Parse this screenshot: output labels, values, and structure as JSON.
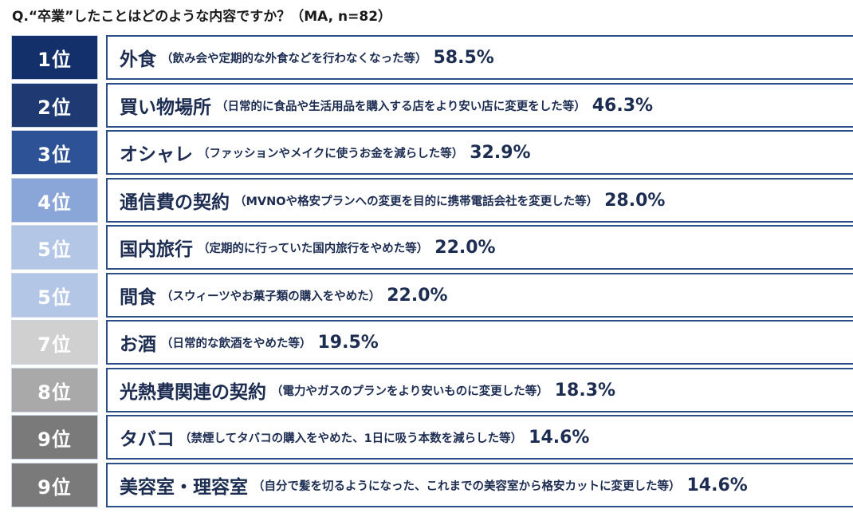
{
  "question": "Q.“卒業”したことはどのような内容ですか？（MA, n=82）",
  "chart_data": {
    "type": "table",
    "title": "Q.“卒業”したことはどのような内容ですか？（MA, n=82）",
    "rows": [
      {
        "rank": "1位",
        "item": "外食",
        "note": "（飲み会や定期的な外食などを行わなくなった等）",
        "value": 58.5,
        "value_label": "58.5%",
        "rank_color": "#14306b"
      },
      {
        "rank": "2位",
        "item": "買い物場所",
        "note": "（日常的に食品や生活用品を購入する店をより安い店に変更をした等）",
        "value": 46.3,
        "value_label": "46.3%",
        "rank_color": "#1f3a73"
      },
      {
        "rank": "3位",
        "item": "オシャレ",
        "note": "（ファッションやメイクに使うお金を減らした等）",
        "value": 32.9,
        "value_label": "32.9%",
        "rank_color": "#2d5295"
      },
      {
        "rank": "4位",
        "item": "通信費の契約",
        "note": "（MVNOや格安プランへの変更を目的に携帯電話会社を変更した等）",
        "value": 28.0,
        "value_label": "28.0%",
        "rank_color": "#8aa6d8"
      },
      {
        "rank": "5位",
        "item": "国内旅行",
        "note": "（定期的に行っていた国内旅行をやめた等）",
        "value": 22.0,
        "value_label": "22.0%",
        "rank_color": "#b3c6e6"
      },
      {
        "rank": "5位",
        "item": "間食",
        "note": "（スウィーツやお菓子類の購入をやめた）",
        "value": 22.0,
        "value_label": "22.0%",
        "rank_color": "#b3c6e6"
      },
      {
        "rank": "7位",
        "item": "お酒",
        "note": "（日常的な飲酒をやめた等）",
        "value": 19.5,
        "value_label": "19.5%",
        "rank_color": "#d0d0d0"
      },
      {
        "rank": "8位",
        "item": "光熱費関連の契約",
        "note": "（電力やガスのプランをより安いものに変更した等）",
        "value": 18.3,
        "value_label": "18.3%",
        "rank_color": "#a9a9a9"
      },
      {
        "rank": "9位",
        "item": "タバコ",
        "note": "（禁煙してタバコの購入をやめた、1日に吸う本数を減らした等）",
        "value": 14.6,
        "value_label": "14.6%",
        "rank_color": "#7a7a7a"
      },
      {
        "rank": "9位",
        "item": "美容室・理容室",
        "note": "（自分で髪を切るようになった、これまでの美容室から格安カットに変更した等）",
        "value": 14.6,
        "value_label": "14.6%",
        "rank_color": "#7a7a7a"
      }
    ]
  }
}
